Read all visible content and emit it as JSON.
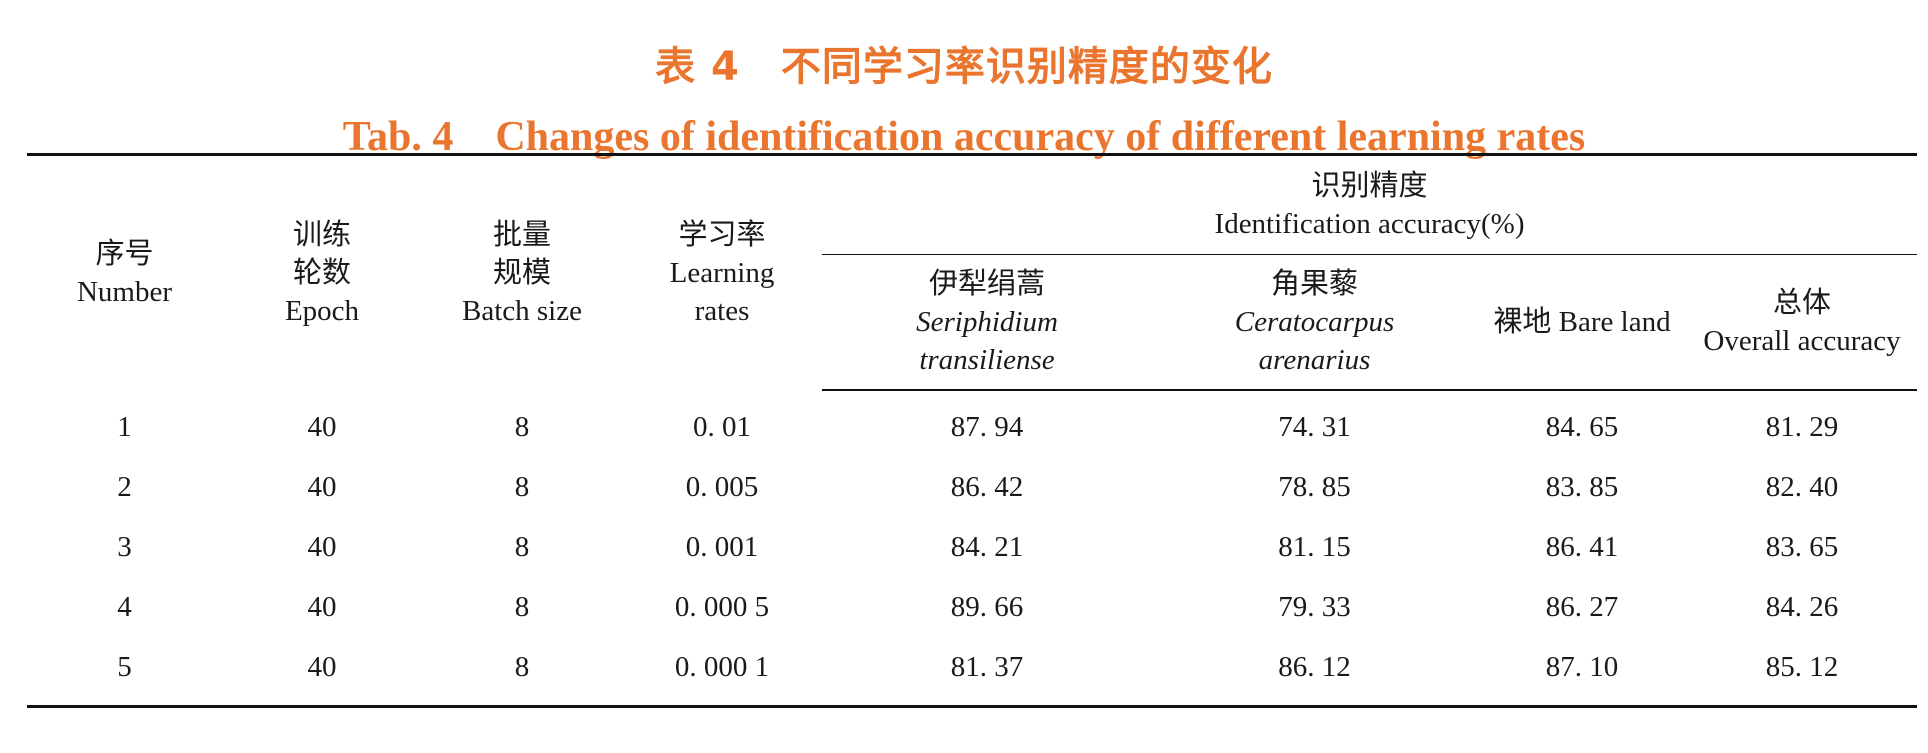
{
  "title_cn": "表 4　不同学习率识别精度的变化",
  "title_en": "Tab. 4　Changes of identification accuracy of different learning rates",
  "headers": {
    "number": {
      "cn": "序号",
      "en": "Number"
    },
    "epoch": {
      "cn1": "训练",
      "cn2": "轮数",
      "en": "Epoch"
    },
    "batch": {
      "cn1": "批量",
      "cn2": "规模",
      "en": "Batch size"
    },
    "lr": {
      "cn": "学习率",
      "en1": "Learning",
      "en2": "rates"
    },
    "group": {
      "cn": "识别精度",
      "en": "Identification accuracy(%)"
    },
    "seriphidium": {
      "cn": "伊犁绢蒿",
      "en1": "Seriphidium",
      "en2": "transiliense"
    },
    "ceratocarpus": {
      "cn": "角果藜",
      "en1": "Ceratocarpus",
      "en2": "arenarius"
    },
    "bare": {
      "label": "裸地 Bare land"
    },
    "overall": {
      "cn": "总体",
      "en": "Overall accuracy"
    }
  },
  "rows": [
    {
      "number": "1",
      "epoch": "40",
      "batch": "8",
      "lr": "0. 01",
      "seriphidium": "87. 94",
      "ceratocarpus": "74. 31",
      "bare": "84. 65",
      "overall": "81. 29"
    },
    {
      "number": "2",
      "epoch": "40",
      "batch": "8",
      "lr": "0. 005",
      "seriphidium": "86. 42",
      "ceratocarpus": "78. 85",
      "bare": "83. 85",
      "overall": "82. 40"
    },
    {
      "number": "3",
      "epoch": "40",
      "batch": "8",
      "lr": "0. 001",
      "seriphidium": "84. 21",
      "ceratocarpus": "81. 15",
      "bare": "86. 41",
      "overall": "83. 65"
    },
    {
      "number": "4",
      "epoch": "40",
      "batch": "8",
      "lr": "0. 000 5",
      "seriphidium": "89. 66",
      "ceratocarpus": "79. 33",
      "bare": "86. 27",
      "overall": "84. 26"
    },
    {
      "number": "5",
      "epoch": "40",
      "batch": "8",
      "lr": "0. 000 1",
      "seriphidium": "81. 37",
      "ceratocarpus": "86. 12",
      "bare": "87. 10",
      "overall": "85. 12"
    }
  ],
  "colors": {
    "title": "#e9752f",
    "text": "#1a1a1a",
    "rule": "#111111"
  }
}
